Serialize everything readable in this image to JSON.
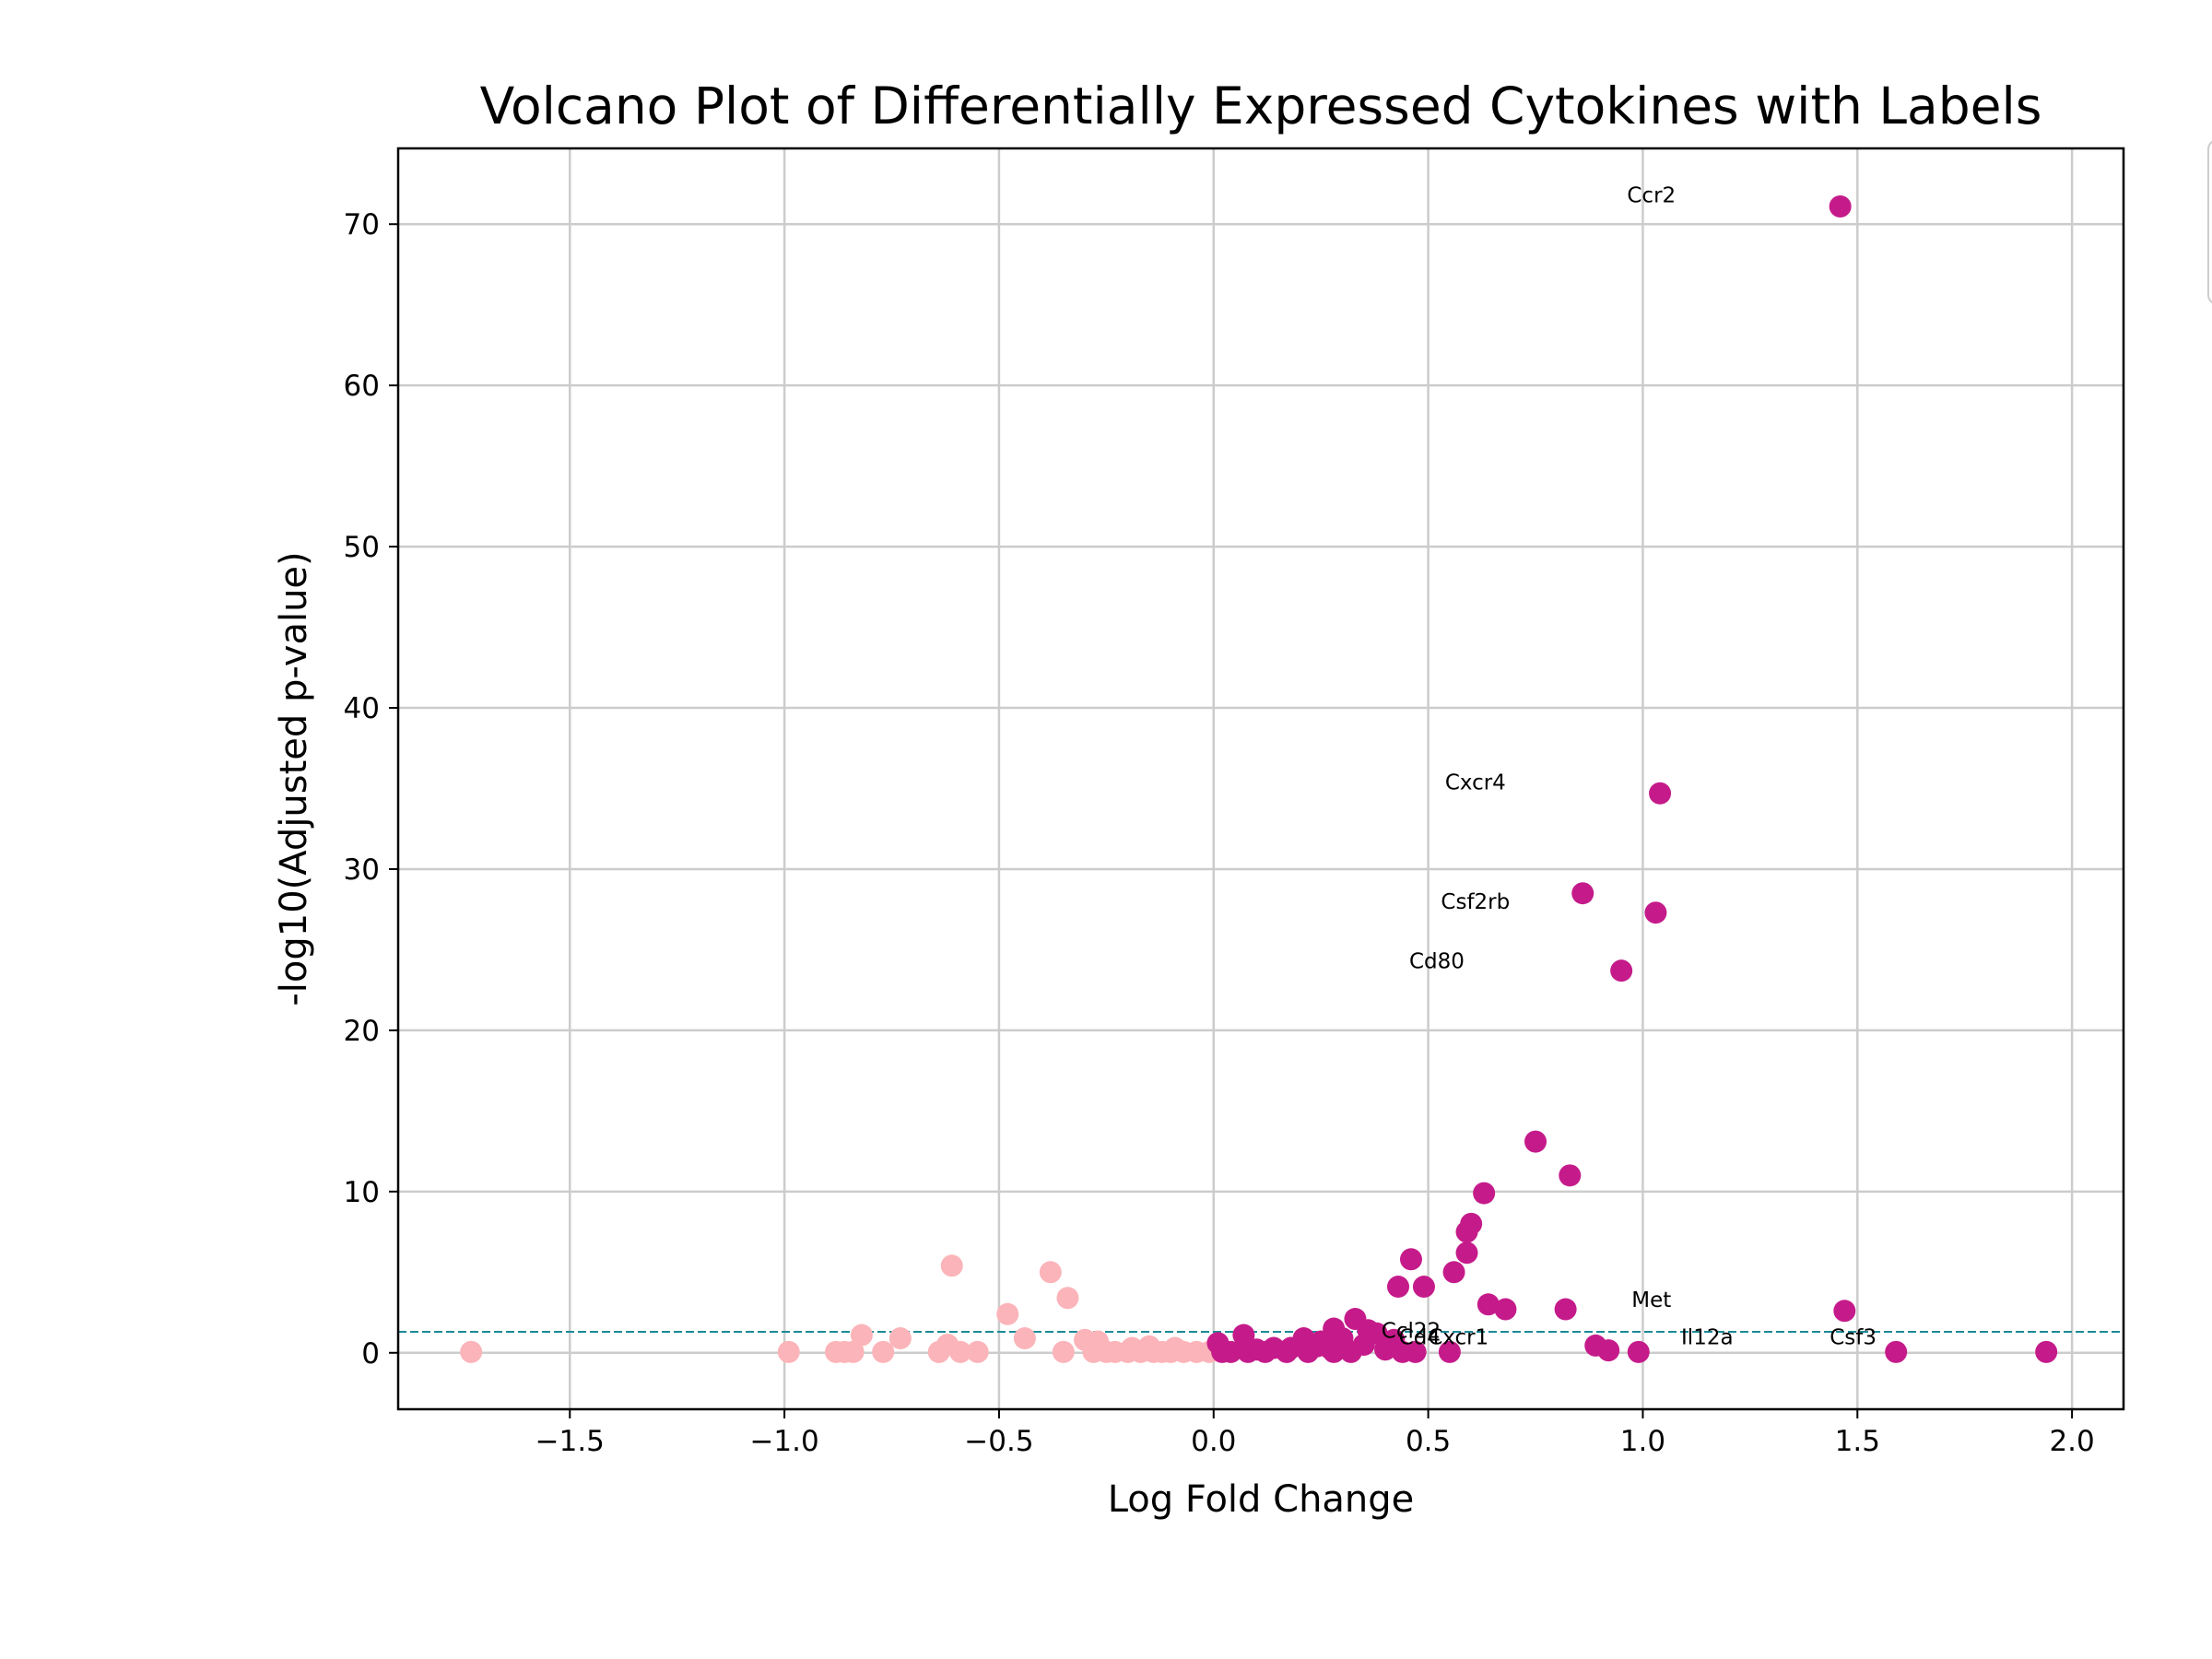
{
  "chart_data": {
    "type": "scatter",
    "title": "Volcano Plot of Differentially Expressed Cytokines with Labels",
    "xlabel": "Log Fold Change",
    "ylabel": "-log10(Adjusted p-value)",
    "xlim": [
      -1.9,
      2.12
    ],
    "ylim": [
      -3.5,
      74.7
    ],
    "x_ticks": [
      -1.5,
      -1.0,
      -0.5,
      0.0,
      0.5,
      1.0,
      1.5,
      2.0
    ],
    "x_tick_labels": [
      "−1.5",
      "−1.0",
      "−0.5",
      "0.0",
      "0.5",
      "1.0",
      "1.5",
      "2.0"
    ],
    "y_ticks": [
      0,
      10,
      20,
      30,
      40,
      50,
      60,
      70
    ],
    "y_tick_labels": [
      "0",
      "10",
      "20",
      "30",
      "40",
      "50",
      "60",
      "70"
    ],
    "grid": true,
    "legend": "partially visible at right edge, entries not legible",
    "significance_threshold": {
      "y": 1.3,
      "style": "dashed",
      "color": "#1a8a96"
    },
    "colors": {
      "upregulated": "#c51b8a",
      "downregulated": "#fbb4b9"
    },
    "series": [
      {
        "color": "#c51b8a",
        "points": [
          [
            1.46,
            71.1
          ],
          [
            1.04,
            34.7
          ],
          [
            1.03,
            27.3
          ],
          [
            0.86,
            28.5
          ],
          [
            0.95,
            23.7
          ],
          [
            0.75,
            13.1
          ],
          [
            0.83,
            11.0
          ],
          [
            0.63,
            9.9
          ],
          [
            0.6,
            8.0
          ],
          [
            0.59,
            7.5
          ],
          [
            0.59,
            6.2
          ],
          [
            0.46,
            5.8
          ],
          [
            0.56,
            5.0
          ],
          [
            0.43,
            4.1
          ],
          [
            0.49,
            4.1
          ],
          [
            0.64,
            3.0
          ],
          [
            0.68,
            2.7
          ],
          [
            0.82,
            2.7
          ],
          [
            1.47,
            2.6
          ],
          [
            0.33,
            2.1
          ],
          [
            0.28,
            1.5
          ],
          [
            0.36,
            1.4
          ],
          [
            0.38,
            1.2
          ],
          [
            0.07,
            1.1
          ],
          [
            0.21,
            0.9
          ],
          [
            0.42,
            0.8
          ],
          [
            0.3,
            0.9
          ],
          [
            0.25,
            0.7
          ],
          [
            0.01,
            0.6
          ],
          [
            0.14,
            0.3
          ],
          [
            0.18,
            0.3
          ],
          [
            0.4,
            0.2
          ],
          [
            0.24,
            0.4
          ],
          [
            0.89,
            0.45
          ],
          [
            0.92,
            0.15
          ],
          [
            0.99,
            0.05
          ],
          [
            1.59,
            0.05
          ],
          [
            1.94,
            0.05
          ],
          [
            0.02,
            0.05
          ],
          [
            0.04,
            0.05
          ],
          [
            0.08,
            0.05
          ],
          [
            0.12,
            0.05
          ],
          [
            0.17,
            0.05
          ],
          [
            0.22,
            0.05
          ],
          [
            0.28,
            0.05
          ],
          [
            0.32,
            0.05
          ],
          [
            0.44,
            0.05
          ],
          [
            0.47,
            0.05
          ],
          [
            0.55,
            0.05
          ],
          [
            0.1,
            0.2
          ],
          [
            0.27,
            0.3
          ],
          [
            0.35,
            0.5
          ]
        ]
      },
      {
        "color": "#fbb4b9",
        "points": [
          [
            -0.61,
            5.4
          ],
          [
            -0.38,
            5.0
          ],
          [
            -0.34,
            3.4
          ],
          [
            -0.48,
            2.4
          ],
          [
            -0.82,
            1.1
          ],
          [
            -0.73,
            0.9
          ],
          [
            -0.44,
            0.9
          ],
          [
            -0.3,
            0.8
          ],
          [
            -0.27,
            0.7
          ],
          [
            -0.62,
            0.5
          ],
          [
            -0.15,
            0.4
          ],
          [
            -0.09,
            0.3
          ],
          [
            -0.19,
            0.3
          ],
          [
            -1.73,
            0.05
          ],
          [
            -0.99,
            0.05
          ],
          [
            -0.88,
            0.05
          ],
          [
            -0.86,
            0.05
          ],
          [
            -0.84,
            0.05
          ],
          [
            -0.77,
            0.05
          ],
          [
            -0.64,
            0.05
          ],
          [
            -0.59,
            0.05
          ],
          [
            -0.55,
            0.05
          ],
          [
            -0.35,
            0.05
          ],
          [
            -0.28,
            0.05
          ],
          [
            -0.25,
            0.05
          ],
          [
            -0.23,
            0.05
          ],
          [
            -0.2,
            0.05
          ],
          [
            -0.17,
            0.05
          ],
          [
            -0.14,
            0.05
          ],
          [
            -0.12,
            0.05
          ],
          [
            -0.1,
            0.05
          ],
          [
            -0.07,
            0.05
          ],
          [
            -0.04,
            0.05
          ],
          [
            -0.01,
            0.05
          ]
        ]
      }
    ],
    "annotations": [
      {
        "text": "Ccr2",
        "x": 1.02,
        "y": 71.8
      },
      {
        "text": "Cxcr4",
        "x": 0.61,
        "y": 35.4
      },
      {
        "text": "Csf2rb",
        "x": 0.61,
        "y": 28.0
      },
      {
        "text": "Cd80",
        "x": 0.52,
        "y": 24.3
      },
      {
        "text": "Met",
        "x": 1.02,
        "y": 3.3
      },
      {
        "text": "Ccl22",
        "x": 0.46,
        "y": 1.4
      },
      {
        "text": "Cd4",
        "x": 0.48,
        "y": 1.0
      },
      {
        "text": "Cxcr1",
        "x": 0.57,
        "y": 1.0
      },
      {
        "text": "Il12a",
        "x": 1.15,
        "y": 1.0
      },
      {
        "text": "Csf3",
        "x": 1.49,
        "y": 1.0
      }
    ]
  }
}
